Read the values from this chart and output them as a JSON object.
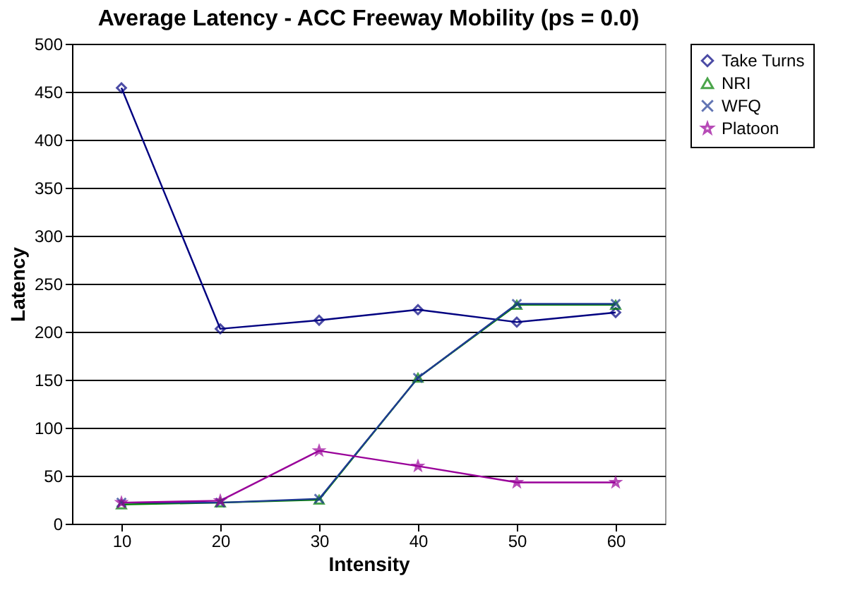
{
  "chart_data": {
    "type": "line",
    "title": "Average Latency - ACC Freeway Mobility (ps = 0.0)",
    "xlabel": "Intensity",
    "ylabel": "Latency",
    "categories": [
      "10",
      "20",
      "30",
      "40",
      "50",
      "60"
    ],
    "series": [
      {
        "name": "Take Turns",
        "color": "#000080",
        "marker": "diamond",
        "values": [
          454,
          203,
          212,
          223,
          210,
          220
        ]
      },
      {
        "name": "NRI",
        "color": "#008000",
        "marker": "triangle",
        "values": [
          20,
          22,
          25,
          152,
          228,
          228
        ]
      },
      {
        "name": "WFQ",
        "color": "#1f3a93",
        "marker": "cross",
        "values": [
          22,
          22,
          26,
          152,
          229,
          229
        ]
      },
      {
        "name": "Platoon",
        "color": "#990099",
        "marker": "star",
        "values": [
          22,
          24,
          76,
          60,
          43,
          43
        ]
      }
    ],
    "ylim": [
      0,
      500
    ],
    "yticks": [
      0,
      50,
      100,
      150,
      200,
      250,
      300,
      350,
      400,
      450,
      500
    ],
    "grid": "y",
    "legend": "right",
    "line_style": "solid"
  }
}
